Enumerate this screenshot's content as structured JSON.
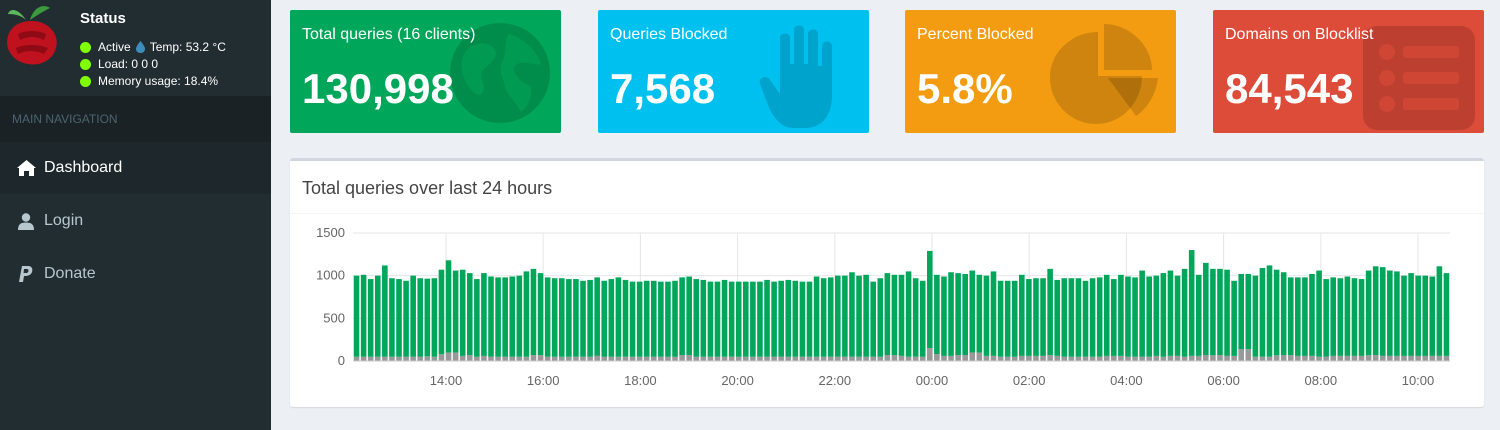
{
  "status": {
    "title": "Status",
    "active": "Active",
    "temp": "Temp: 53.2 °C",
    "load": "Load:  0  0  0",
    "memory": "Memory usage:  18.4%"
  },
  "nav": {
    "header": "MAIN NAVIGATION",
    "items": [
      {
        "label": "Dashboard",
        "icon": "home-icon"
      },
      {
        "label": "Login",
        "icon": "user-icon"
      },
      {
        "label": "Donate",
        "icon": "paypal-icon"
      }
    ]
  },
  "stats": [
    {
      "label": "Total queries (16 clients)",
      "value": "130,998",
      "color": "#00a65a",
      "icon": "globe-icon"
    },
    {
      "label": "Queries Blocked",
      "value": "7,568",
      "color": "#00c0ef",
      "icon": "hand-icon"
    },
    {
      "label": "Percent Blocked",
      "value": "5.8%",
      "color": "#f39c12",
      "icon": "pie-chart-icon"
    },
    {
      "label": "Domains on Blocklist",
      "value": "84,543",
      "color": "#dd4b39",
      "icon": "list-icon"
    }
  ],
  "chart_title": "Total queries over last 24 hours",
  "chart_data": {
    "type": "bar",
    "stacked": true,
    "ylim": [
      0,
      1500
    ],
    "yticks": [
      "0",
      "500",
      "1000",
      "1500"
    ],
    "xticks": [
      "14:00",
      "16:00",
      "18:00",
      "20:00",
      "22:00",
      "00:00",
      "02:00",
      "04:00",
      "06:00",
      "08:00",
      "10:00"
    ],
    "grid": true,
    "colors": {
      "permitted": "#00a65a",
      "blocked": "#999999"
    },
    "series": [
      {
        "values": [
          950,
          960,
          910,
          950,
          1070,
          920,
          910,
          890,
          950,
          920,
          910,
          920,
          990,
          1080,
          960,
          1010,
          960,
          910,
          970,
          940,
          930,
          930,
          940,
          950,
          1000,
          1010,
          960,
          930,
          920,
          920,
          910,
          910,
          890,
          900,
          920,
          890,
          910,
          930,
          900,
          880,
          880,
          890,
          890,
          880,
          880,
          890,
          910,
          920,
          910,
          900,
          880,
          880,
          900,
          880,
          880,
          880,
          880,
          880,
          900,
          880,
          890,
          900,
          890,
          880,
          880,
          940,
          920,
          930,
          950,
          950,
          990,
          950,
          960,
          880,
          920,
          960,
          940,
          950,
          1000,
          920,
          890,
          1140,
          930,
          930,
          980,
          960,
          950,
          960,
          910,
          940,
          990,
          890,
          890,
          890,
          950,
          900,
          910,
          910,
          1010,
          890,
          920,
          920,
          920,
          890,
          920,
          930,
          950,
          900,
          950,
          940,
          930,
          1010,
          940,
          940,
          980,
          1000,
          940,
          1030,
          1240,
          950,
          1080,
          1010,
          1010,
          1010,
          880,
          880,
          880,
          950,
          1040,
          1070,
          1000,
          970,
          910,
          920,
          920,
          960,
          1010,
          910,
          920,
          910,
          930,
          910,
          900,
          990,
          1040,
          1040,
          1000,
          990,
          940,
          970,
          940,
          940,
          930,
          1050,
          970
        ]
      },
      {
        "values": [
          50,
          50,
          50,
          50,
          50,
          50,
          50,
          50,
          50,
          50,
          55,
          50,
          80,
          100,
          100,
          60,
          70,
          50,
          60,
          50,
          50,
          50,
          50,
          50,
          50,
          70,
          70,
          50,
          50,
          50,
          50,
          50,
          50,
          50,
          60,
          50,
          50,
          50,
          50,
          50,
          50,
          50,
          50,
          50,
          50,
          50,
          70,
          70,
          50,
          50,
          50,
          50,
          50,
          50,
          50,
          50,
          50,
          50,
          50,
          50,
          50,
          50,
          50,
          50,
          50,
          50,
          50,
          50,
          50,
          50,
          50,
          50,
          50,
          50,
          50,
          70,
          70,
          60,
          50,
          50,
          50,
          150,
          80,
          60,
          60,
          70,
          70,
          100,
          100,
          60,
          60,
          50,
          50,
          50,
          60,
          60,
          60,
          60,
          70,
          60,
          50,
          50,
          50,
          50,
          50,
          50,
          60,
          60,
          60,
          50,
          50,
          50,
          50,
          60,
          50,
          60,
          60,
          50,
          60,
          60,
          70,
          70,
          70,
          60,
          60,
          140,
          140,
          50,
          50,
          50,
          70,
          70,
          70,
          60,
          60,
          60,
          50,
          50,
          60,
          60,
          60,
          60,
          60,
          70,
          70,
          60,
          60,
          60,
          60,
          60,
          60,
          60,
          60,
          60,
          60,
          70,
          60,
          60
        ]
      }
    ]
  }
}
